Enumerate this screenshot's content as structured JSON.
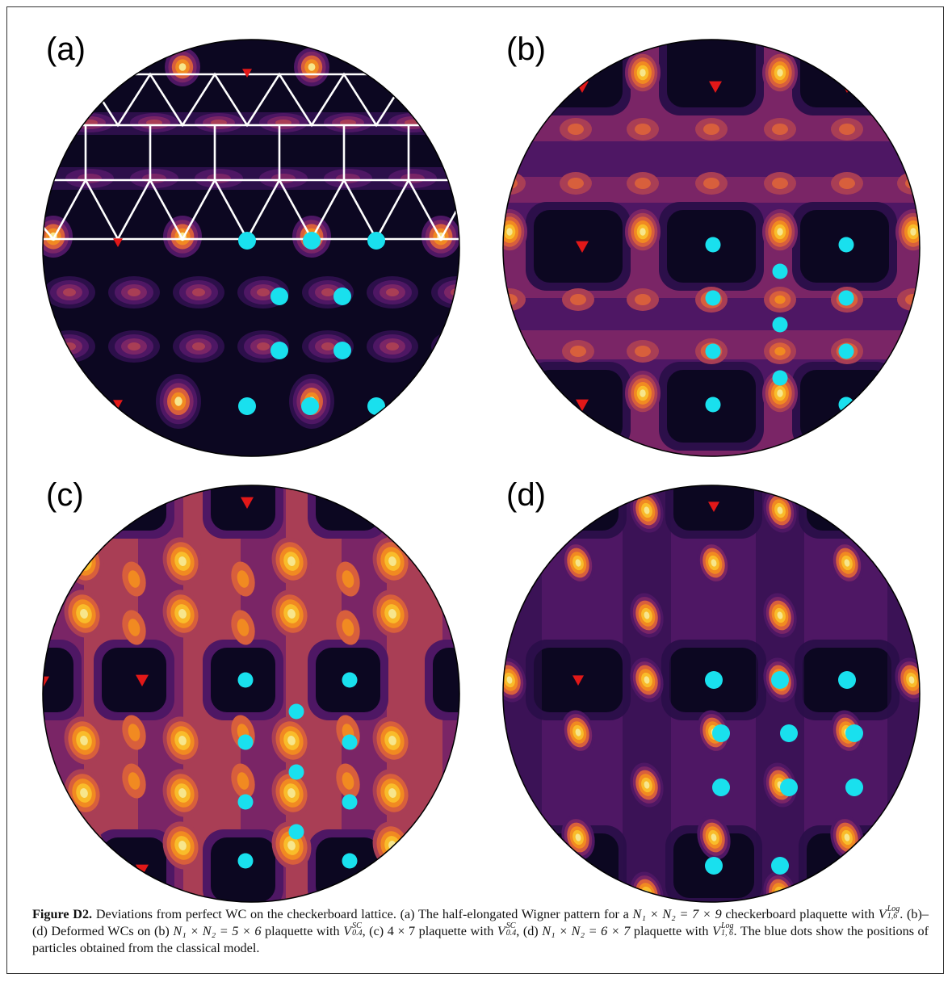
{
  "colors": {
    "bg": "#0c0721",
    "l1": "#2c0f4a",
    "l2": "#4e1764",
    "l3": "#7a2566",
    "l4": "#a93e55",
    "l5": "#d85f3c",
    "l6": "#f18a21",
    "l7": "#f9bc2a",
    "l8": "#f7e68c",
    "triangle": "#e21818",
    "dot": "#19e0ee",
    "lattice": "#ffffff"
  },
  "panels": [
    {
      "id": "a",
      "label": "(a)",
      "base": "l1"
    },
    {
      "id": "b",
      "label": "(b)",
      "base": "l3"
    },
    {
      "id": "c",
      "label": "(c)",
      "base": "l4"
    },
    {
      "id": "d",
      "label": "(d)",
      "base": "l2"
    }
  ],
  "caption": {
    "figure_label": "Figure D2.",
    "s1": "Deviations from perfect WC on the checkerboard lattice. (a) The half-elongated Wigner pattern for a",
    "s2": "checkerboard plaquette with",
    "s3": ". (b)–(d) Deformed WCs on (b)",
    "s4": "plaquette with",
    "s5": ", (c) 4 × 7 plaquette with",
    "s6": ", (d)",
    "s7": "plaquette with",
    "s8": ". The blue dots show the positions of particles obtained from the classical model.",
    "eq_a": "N₁ × N₂ = 7 × 9",
    "eq_b": "N₁ × N₂ = 5 × 6",
    "eq_d": "N₁ × N₂ = 6 × 7",
    "V": "V",
    "log": "Log",
    "sc": "SC",
    "v_a_sub": "1,6",
    "v_b_sub": "0.4",
    "v_c_sub": "0.4",
    "v_d_sub": "1, 6"
  }
}
